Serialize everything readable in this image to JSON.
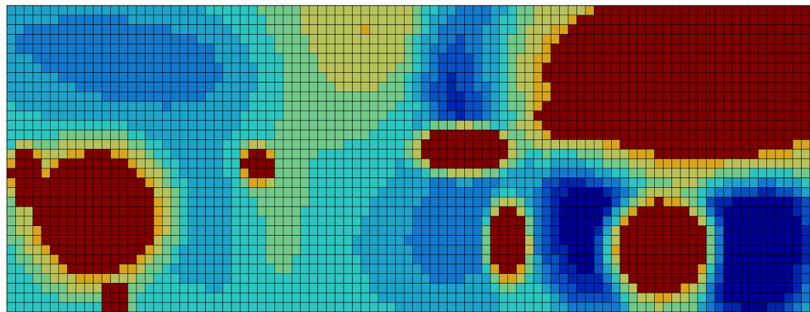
{
  "chart_data": {
    "type": "heatmap",
    "grid": {
      "columns": 93,
      "rows": 32
    },
    "colormap": [
      "#00008f",
      "#0026b0",
      "#0a4fc4",
      "#1479cc",
      "#1fa3c9",
      "#2ec4c0",
      "#72c98a",
      "#b9c25a",
      "#d9a51c",
      "#7f0000"
    ],
    "cell_edge_color": "#000000",
    "background_color": "#ffffff",
    "value_range": [
      0,
      1
    ],
    "saturated_above": 0.9,
    "fields": [
      {
        "type": "gaussian",
        "cx": 0.2,
        "cy": 0.22,
        "sx": 0.12,
        "sy": 0.12,
        "amp": -0.2
      },
      {
        "type": "gaussian",
        "cx": 0.04,
        "cy": 0.08,
        "sx": 0.15,
        "sy": 0.11,
        "amp": -0.12
      },
      {
        "type": "gaussian",
        "cx": 0.45,
        "cy": 0.12,
        "sx": 0.1,
        "sy": 0.22,
        "amp": 0.28
      },
      {
        "type": "gaussian",
        "cx": 0.57,
        "cy": 0.35,
        "sx": 0.06,
        "sy": 0.16,
        "amp": -0.3
      },
      {
        "type": "gaussian",
        "cx": 0.55,
        "cy": 0.78,
        "sx": 0.06,
        "sy": 0.16,
        "amp": -0.2
      },
      {
        "type": "gaussian",
        "cx": 0.69,
        "cy": 0.62,
        "sx": 0.07,
        "sy": 0.16,
        "amp": -0.05
      },
      {
        "type": "gaussian",
        "cx": 0.34,
        "cy": 0.68,
        "sx": 0.03,
        "sy": 0.2,
        "amp": 0.16
      },
      {
        "type": "gaussian",
        "cx": 0.28,
        "cy": 0.7,
        "sx": 0.1,
        "sy": 0.25,
        "amp": -0.08
      }
    ],
    "hot_regions": [
      {
        "cx": 0.11,
        "cy": 0.68,
        "rx": 0.075,
        "ry": 0.2,
        "rot": 0.0
      },
      {
        "cx": 0.025,
        "cy": 0.56,
        "rx": 0.02,
        "ry": 0.09,
        "rot": 0.0
      },
      {
        "cx": 0.135,
        "cy": 0.96,
        "rx": 0.015,
        "ry": 0.06,
        "rot": 0.0
      },
      {
        "cx": 0.312,
        "cy": 0.52,
        "rx": 0.018,
        "ry": 0.06,
        "rot": 0.0
      },
      {
        "cx": 0.57,
        "cy": 0.47,
        "rx": 0.055,
        "ry": 0.07,
        "rot": 0.0
      },
      {
        "cx": 0.624,
        "cy": 0.77,
        "rx": 0.022,
        "ry": 0.12,
        "rot": 0.0
      },
      {
        "cx": 0.815,
        "cy": 0.79,
        "rx": 0.055,
        "ry": 0.15,
        "rot": 0.0
      },
      {
        "cx": 0.87,
        "cy": 0.22,
        "rx": 0.2,
        "ry": 0.28,
        "rot": 0.0
      },
      {
        "cx": 0.76,
        "cy": 0.3,
        "rx": 0.08,
        "ry": 0.15,
        "rot": -0.5
      }
    ],
    "cool_regions": [
      {
        "cx": 0.76,
        "cy": 0.07,
        "rx": 0.075,
        "ry": 0.19,
        "amp": -0.75
      },
      {
        "cx": 0.58,
        "cy": 0.15,
        "rx": 0.09,
        "ry": 0.28,
        "amp": -0.35
      },
      {
        "cx": 0.73,
        "cy": 0.72,
        "rx": 0.08,
        "ry": 0.35,
        "amp": -0.55
      },
      {
        "cx": 0.93,
        "cy": 0.77,
        "rx": 0.09,
        "ry": 0.35,
        "amp": -0.78
      }
    ]
  }
}
